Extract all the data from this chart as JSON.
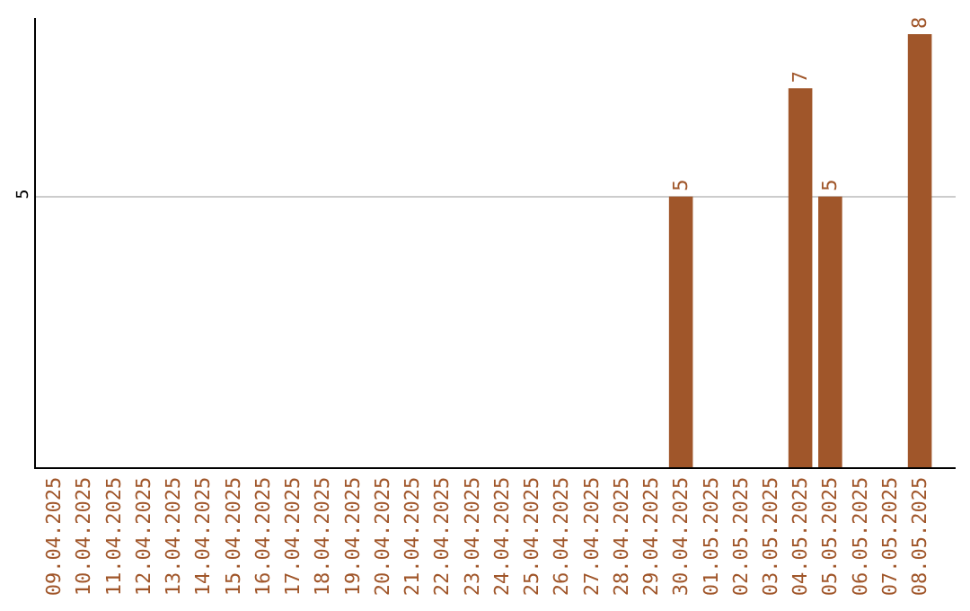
{
  "chart_data": {
    "type": "bar",
    "categories": [
      "09.04.2025",
      "10.04.2025",
      "11.04.2025",
      "12.04.2025",
      "13.04.2025",
      "14.04.2025",
      "15.04.2025",
      "16.04.2025",
      "17.04.2025",
      "18.04.2025",
      "19.04.2025",
      "20.04.2025",
      "21.04.2025",
      "22.04.2025",
      "23.04.2025",
      "24.04.2025",
      "25.04.2025",
      "26.04.2025",
      "27.04.2025",
      "28.04.2025",
      "29.04.2025",
      "30.04.2025",
      "01.05.2025",
      "02.05.2025",
      "03.05.2025",
      "04.05.2025",
      "05.05.2025",
      "06.05.2025",
      "07.05.2025",
      "08.05.2025"
    ],
    "values": [
      null,
      null,
      null,
      null,
      null,
      null,
      null,
      null,
      null,
      null,
      null,
      null,
      null,
      null,
      null,
      null,
      null,
      null,
      null,
      null,
      null,
      5,
      null,
      null,
      null,
      7,
      5,
      null,
      null,
      8
    ],
    "data_labels": true,
    "color": "#a0562a",
    "ylim": [
      0,
      8.3
    ],
    "yticks": [
      {
        "value": 0,
        "label": null
      },
      5
    ],
    "grid": "y",
    "legend": false
  }
}
